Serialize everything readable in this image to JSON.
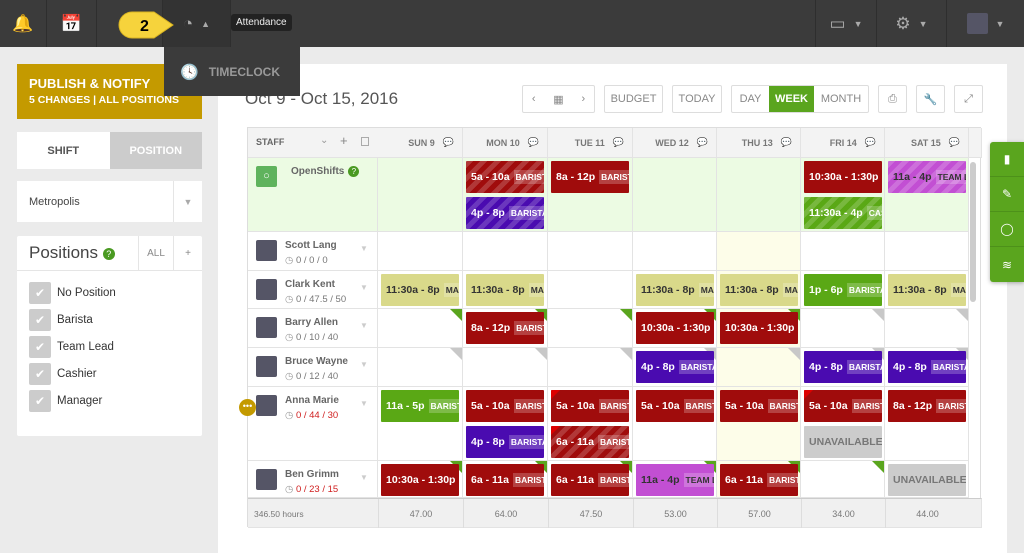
{
  "topbar": {
    "tooltip": "Attendance",
    "callout_number": "2",
    "dropdown_item": "TIMECLOCK"
  },
  "sidebar": {
    "publish_title": "PUBLISH & NOTIFY",
    "publish_sub": "5 CHANGES | ALL POSITIONS",
    "toggle": [
      "SHIFT",
      "POSITION"
    ],
    "location": "Metropolis",
    "positions_title": "Positions",
    "all_label": "ALL",
    "add_label": "+",
    "positions": [
      "No Position",
      "Barista",
      "Team Lead",
      "Cashier",
      "Manager"
    ]
  },
  "header": {
    "date_range": "Oct 9 - Oct 15, 2016",
    "budget": "BUDGET",
    "today": "TODAY",
    "views": [
      "DAY",
      "WEEK",
      "MONTH"
    ],
    "active_view": "WEEK"
  },
  "colors": {
    "red": "#a00c0c",
    "purple": "#4a0bb0",
    "green": "#5aa815",
    "yellow": "#d9d98a",
    "pink": "#c24fd3",
    "gray": "#cccccc",
    "accent": "#5aa51e",
    "publish": "#c49a00"
  },
  "table": {
    "staff_header": "STAFF",
    "days": [
      "SUN 9",
      "MON 10",
      "TUE 11",
      "WED 12",
      "THU 13",
      "FRI 14",
      "SAT 15"
    ],
    "rows": [
      {
        "name": "OpenShifts",
        "hours": "",
        "open": true,
        "cells": [
          {},
          {
            "shifts": [
              {
                "t": "5a - 10a",
                "p": "BARISTA",
                "c": "red",
                "s": true
              },
              {
                "t": "4p - 8p",
                "p": "BARISTA",
                "c": "purple",
                "s": true
              }
            ]
          },
          {
            "shifts": [
              {
                "t": "8a - 12p",
                "p": "BARISTA",
                "c": "red"
              }
            ]
          },
          {},
          {},
          {
            "shifts": [
              {
                "t": "10:30a - 1:30p",
                "p": "",
                "c": "red"
              },
              {
                "t": "11:30a - 4p",
                "p": "CASHIER",
                "c": "green",
                "s": true
              }
            ]
          },
          {
            "shifts": [
              {
                "t": "11a - 4p",
                "p": "TEAM LEAD",
                "c": "pink",
                "s": true
              }
            ]
          }
        ]
      },
      {
        "name": "Scott Lang",
        "hours": "0 / 0 / 0",
        "cells": [
          {},
          {},
          {},
          {},
          {},
          {},
          {}
        ]
      },
      {
        "name": "Clark Kent",
        "hours": "0 / 47.5 / 50",
        "cells": [
          {
            "shifts": [
              {
                "t": "11:30a - 8p",
                "p": "MANAGER",
                "c": "yellow"
              }
            ]
          },
          {
            "shifts": [
              {
                "t": "11:30a - 8p",
                "p": "MANAGER",
                "c": "yellow"
              }
            ]
          },
          {},
          {
            "shifts": [
              {
                "t": "11:30a - 8p",
                "p": "MANAGER",
                "c": "yellow"
              }
            ]
          },
          {
            "shifts": [
              {
                "t": "11:30a - 8p",
                "p": "MANAGER",
                "c": "yellow"
              }
            ]
          },
          {
            "shifts": [
              {
                "t": "1p - 6p",
                "p": "BARISTA",
                "c": "green"
              }
            ]
          },
          {
            "shifts": [
              {
                "t": "11:30a - 8p",
                "p": "MANAGER",
                "c": "yellow"
              }
            ]
          }
        ]
      },
      {
        "name": "Barry Allen",
        "hours": "0 / 10 / 40",
        "cells": [
          {
            "corner": "green"
          },
          {
            "corner": "green",
            "shifts": [
              {
                "t": "8a - 12p",
                "p": "BARISTA",
                "c": "red"
              }
            ]
          },
          {
            "corner": "green"
          },
          {
            "corner": "green",
            "shifts": [
              {
                "t": "10:30a - 1:30p",
                "p": "",
                "c": "red"
              }
            ]
          },
          {
            "corner": "green",
            "shifts": [
              {
                "t": "10:30a - 1:30p",
                "p": "",
                "c": "red"
              }
            ]
          },
          {
            "corner": "gray"
          },
          {
            "corner": "gray"
          }
        ]
      },
      {
        "name": "Bruce Wayne",
        "hours": "0 / 12 / 40",
        "cells": [
          {
            "corner": "gray"
          },
          {
            "corner": "gray"
          },
          {
            "corner": "gray"
          },
          {
            "corner": "gray",
            "shifts": [
              {
                "t": "4p - 8p",
                "p": "BARISTA",
                "c": "purple"
              }
            ]
          },
          {
            "corner": "gray"
          },
          {
            "corner": "gray",
            "shifts": [
              {
                "t": "4p - 8p",
                "p": "BARISTA",
                "c": "purple"
              }
            ]
          },
          {
            "corner": "gray",
            "shifts": [
              {
                "t": "4p - 8p",
                "p": "BARISTA",
                "c": "purple"
              }
            ]
          }
        ]
      },
      {
        "name": "Anna Marie",
        "hours": "0 / 44 / 30",
        "over": true,
        "cells": [
          {
            "shifts": [
              {
                "t": "11a - 5p",
                "p": "BARISTA",
                "c": "green"
              }
            ]
          },
          {
            "shifts": [
              {
                "t": "5a - 10a",
                "p": "BARISTA",
                "c": "red"
              },
              {
                "t": "4p - 8p",
                "p": "BARISTA",
                "c": "purple"
              }
            ]
          },
          {
            "shifts": [
              {
                "t": "5a - 10a",
                "p": "BARISTA",
                "c": "red",
                "l": true
              },
              {
                "t": "6a - 11a",
                "p": "BARISTA",
                "c": "red",
                "s": true,
                "l": true
              }
            ]
          },
          {
            "shifts": [
              {
                "t": "5a - 10a",
                "p": "BARISTA",
                "c": "red"
              }
            ]
          },
          {
            "shifts": [
              {
                "t": "5a - 10a",
                "p": "BARISTA",
                "c": "red"
              }
            ]
          },
          {
            "shifts": [
              {
                "t": "5a - 10a",
                "p": "BARISTA",
                "c": "red",
                "l": true
              },
              {
                "t": "UNAVAILABLE",
                "p": "",
                "c": "gray"
              }
            ]
          },
          {
            "shifts": [
              {
                "t": "8a - 12p",
                "p": "BARISTA",
                "c": "red"
              }
            ]
          }
        ]
      },
      {
        "name": "Ben Grimm",
        "hours": "0 / 23 / 15",
        "over": true,
        "cells": [
          {
            "corner": "green",
            "shifts": [
              {
                "t": "10:30a - 1:30p",
                "p": "",
                "c": "red"
              }
            ]
          },
          {
            "corner": "green",
            "shifts": [
              {
                "t": "6a - 11a",
                "p": "BARISTA",
                "c": "red"
              }
            ]
          },
          {
            "corner": "green",
            "shifts": [
              {
                "t": "6a - 11a",
                "p": "BARISTA",
                "c": "red"
              }
            ]
          },
          {
            "corner": "green",
            "shifts": [
              {
                "t": "11a - 4p",
                "p": "TEAM LEAD",
                "c": "pink"
              }
            ]
          },
          {
            "corner": "green",
            "shifts": [
              {
                "t": "6a - 11a",
                "p": "BARISTA",
                "c": "red"
              }
            ]
          },
          {
            "corner": "green"
          },
          {
            "shifts": [
              {
                "t": "UNAVAILABLE",
                "p": "",
                "c": "gray"
              }
            ]
          }
        ]
      }
    ],
    "total_hours": "346.50 hours",
    "day_totals": [
      "47.00",
      "64.00",
      "47.50",
      "53.00",
      "57.00",
      "34.00",
      "44.00"
    ]
  }
}
